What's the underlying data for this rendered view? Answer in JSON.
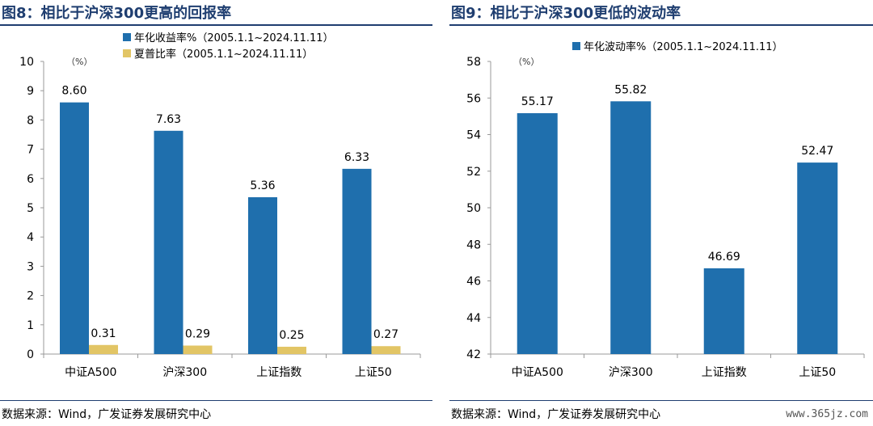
{
  "left": {
    "title": "图8：相比于沪深300更高的回报率",
    "source": "数据来源：Wind，广发证券发展研究中心",
    "chart_data": {
      "type": "bar",
      "unit_label": "（%）",
      "categories": [
        "中证A500",
        "沪深300",
        "上证指数",
        "上证50"
      ],
      "series": [
        {
          "name": "年化收益率%（2005.1.1~2024.11.11）",
          "values": [
            8.6,
            7.63,
            5.36,
            6.33
          ],
          "color": "#1f6fad"
        },
        {
          "name": "夏普比率（2005.1.1~2024.11.11）",
          "values": [
            0.31,
            0.29,
            0.25,
            0.27
          ],
          "color": "#e2c565"
        }
      ],
      "data_labels": [
        [
          "8.60",
          "7.63",
          "5.36",
          "6.33"
        ],
        [
          "0.31",
          "0.29",
          "0.25",
          "0.27"
        ]
      ],
      "ylim": [
        0,
        10
      ],
      "yticks": [
        0,
        1,
        2,
        3,
        4,
        5,
        6,
        7,
        8,
        9,
        10
      ],
      "legend": "top",
      "grid": false
    }
  },
  "right": {
    "title": "图9：相比于沪深300更低的波动率",
    "source": "数据来源：Wind，广发证券发展研究中心",
    "watermark": "www.365jz.com",
    "chart_data": {
      "type": "bar",
      "unit_label": "（%）",
      "categories": [
        "中证A500",
        "沪深300",
        "上证指数",
        "上证50"
      ],
      "series": [
        {
          "name": "年化波动率%（2005.1.1~2024.11.11）",
          "values": [
            55.17,
            55.82,
            46.69,
            52.47
          ],
          "color": "#1f6fad"
        }
      ],
      "data_labels": [
        [
          "55.17",
          "55.82",
          "46.69",
          "52.47"
        ]
      ],
      "ylim": [
        42,
        58
      ],
      "yticks": [
        42,
        44,
        46,
        48,
        50,
        52,
        54,
        56,
        58
      ],
      "legend": "top",
      "grid": false
    }
  }
}
